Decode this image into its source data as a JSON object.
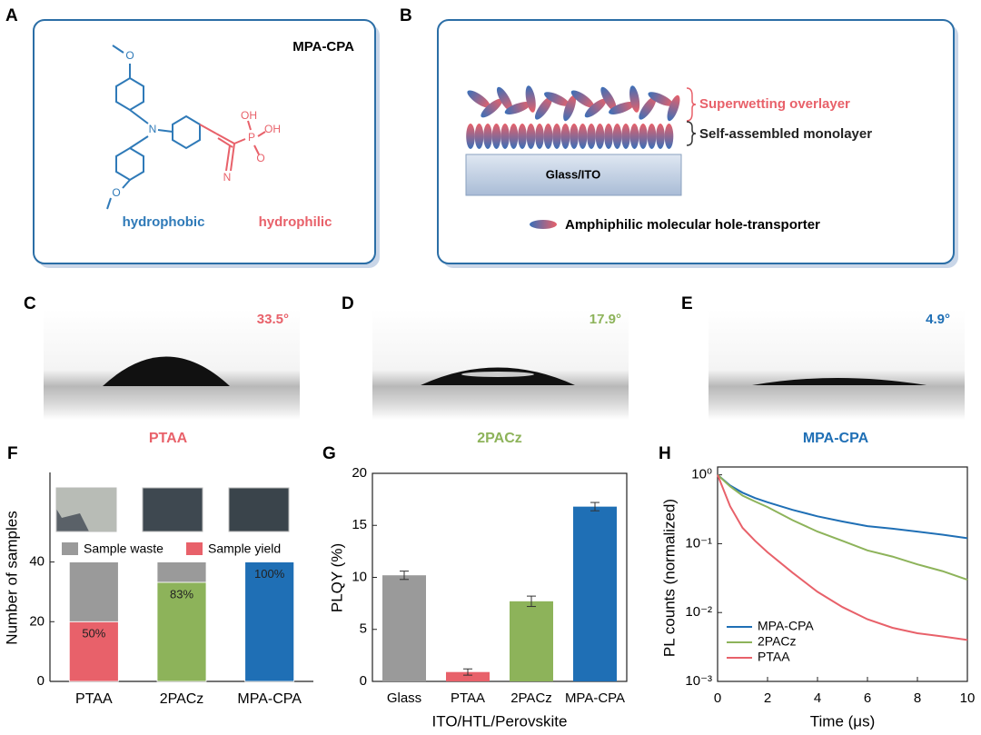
{
  "panels": {
    "A": {
      "label": "A",
      "title": "MPA-CPA",
      "left": "hydrophobic",
      "right": "hydrophilic",
      "atoms": [
        "O",
        "N",
        "OH",
        "P",
        "OH",
        "O",
        "N",
        "O"
      ]
    },
    "B": {
      "label": "B",
      "layer_top": "Superwetting overlayer",
      "layer_mid": "Self-assembled monolayer",
      "substrate": "Glass/ITO",
      "legend": "Amphiphilic molecular hole-transporter"
    },
    "C": {
      "label": "C",
      "angle": "33.5°",
      "sample": "PTAA"
    },
    "D": {
      "label": "D",
      "angle": "17.9°",
      "sample": "2PACz"
    },
    "E": {
      "label": "E",
      "angle": "4.9°",
      "sample": "MPA-CPA"
    }
  },
  "chart_data": [
    {
      "type": "stacked",
      "label": "F",
      "ylabel": "Number of samples",
      "categories": [
        "PTAA",
        "2PACz",
        "MPA-CPA"
      ],
      "series": [
        {
          "name": "Sample yield",
          "color": "#e8616a",
          "values": [
            20,
            33.2,
            40
          ],
          "value_labels": [
            "50%",
            "83%",
            "100%"
          ]
        },
        {
          "name": "Sample waste",
          "color": "#9a9a9a",
          "values": [
            20,
            6.8,
            0
          ]
        }
      ],
      "series_colors_by_category": [
        "#e8616a",
        "#8db35a",
        "#1f6fb5"
      ],
      "ylim": [
        0,
        70
      ],
      "yticks": [
        0,
        20,
        40
      ]
    },
    {
      "type": "bar",
      "label": "G",
      "ylabel": "PLQY (%)",
      "xlabel": "ITO/HTL/Perovskite",
      "categories": [
        "Glass",
        "PTAA",
        "2PACz",
        "MPA-CPA"
      ],
      "values": [
        10.2,
        0.9,
        7.7,
        16.8
      ],
      "errors": [
        0.4,
        0.3,
        0.5,
        0.4
      ],
      "colors": [
        "#9a9a9a",
        "#e8616a",
        "#8db35a",
        "#1f6fb5"
      ],
      "ylim": [
        0,
        20
      ],
      "yticks": [
        0,
        5,
        10,
        15,
        20
      ]
    },
    {
      "type": "line",
      "label": "H",
      "ylabel": "PL counts (normalized)",
      "xlabel": "Time (μs)",
      "log": true,
      "legend": "lower left",
      "x": [
        0,
        0.5,
        1,
        1.5,
        2,
        3,
        4,
        5,
        6,
        7,
        8,
        9,
        10
      ],
      "series": [
        {
          "name": "MPA-CPA",
          "color": "#1f6fb5",
          "values": [
            1,
            0.7,
            0.55,
            0.46,
            0.4,
            0.31,
            0.25,
            0.21,
            0.18,
            0.165,
            0.15,
            0.135,
            0.12
          ]
        },
        {
          "name": "2PACz",
          "color": "#8db35a",
          "values": [
            1,
            0.68,
            0.5,
            0.41,
            0.34,
            0.22,
            0.15,
            0.11,
            0.08,
            0.065,
            0.05,
            0.04,
            0.03
          ]
        },
        {
          "name": "PTAA",
          "color": "#e8616a",
          "values": [
            1,
            0.35,
            0.17,
            0.11,
            0.075,
            0.038,
            0.02,
            0.012,
            0.008,
            0.006,
            0.005,
            0.0045,
            0.004
          ]
        }
      ],
      "xlim": [
        0,
        10
      ],
      "xticks": [
        0,
        2,
        4,
        6,
        8,
        10
      ],
      "ylim": [
        0.001,
        1.3
      ],
      "yticks": [
        {
          "value": 0.001,
          "label": "10⁻³"
        },
        {
          "value": 0.01,
          "label": "10⁻²"
        },
        {
          "value": 0.1,
          "label": "10⁻¹"
        },
        {
          "value": 1,
          "label": "10⁰"
        }
      ]
    }
  ]
}
